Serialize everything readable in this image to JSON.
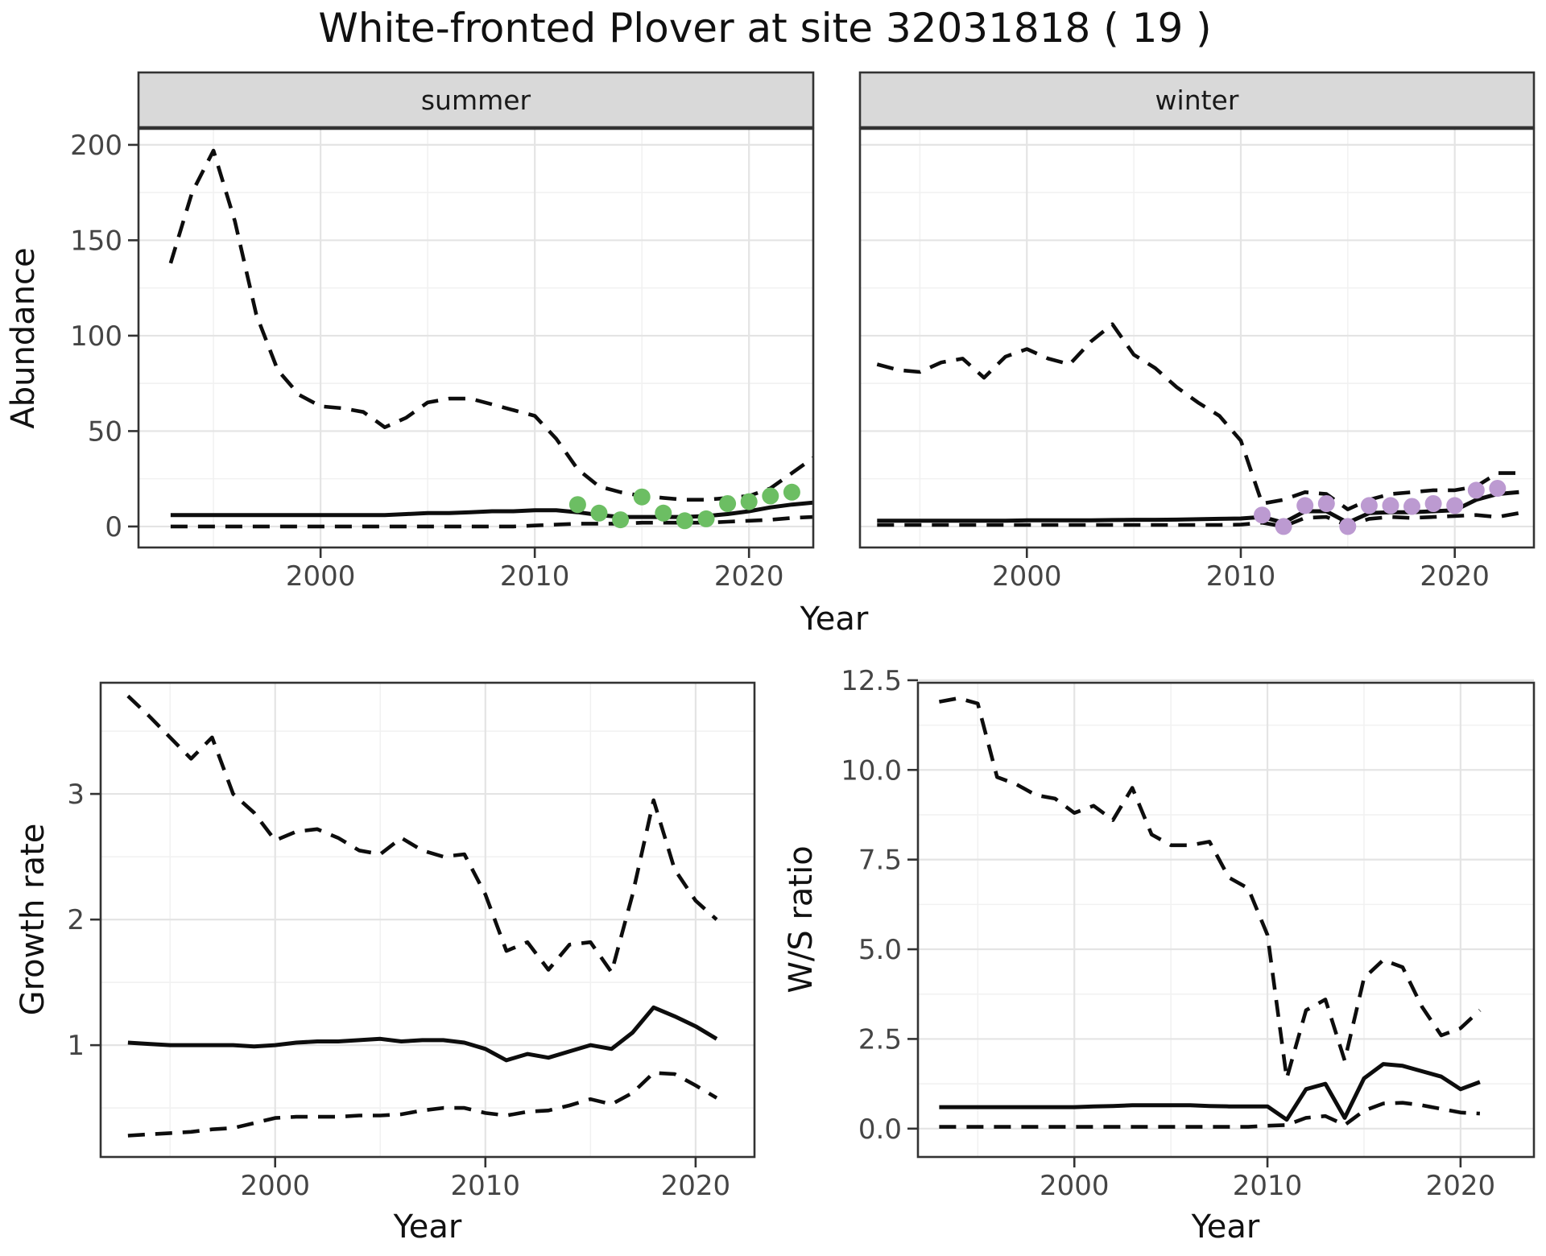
{
  "title": "White-fronted Plover at site 32031818 ( 19 )",
  "labels": {
    "facet_summer": "summer",
    "facet_winter": "winter",
    "abundance": "Abundance",
    "growth": "Growth rate",
    "ws": "W/S ratio",
    "year": "Year"
  },
  "colors": {
    "summer_points": "#6cbe63",
    "winter_points": "#bc9ad1",
    "line": "#0d0d0d",
    "grid_major": "#e4e4e4",
    "grid_minor": "#f1f1f1",
    "panel_border": "#333333",
    "strip_bg": "#d9d9d9",
    "tick_mark": "#333333",
    "panel_bg": "#ffffff"
  },
  "chart_data": [
    {
      "type": "line",
      "name": "summer-abundance",
      "facet": "summer",
      "xlabel": "Year",
      "ylabel": "Abundance",
      "x": [
        1993,
        1994,
        1995,
        1996,
        1997,
        1998,
        1999,
        2000,
        2001,
        2002,
        2003,
        2004,
        2005,
        2006,
        2007,
        2008,
        2009,
        2010,
        2011,
        2012,
        2013,
        2014,
        2015,
        2016,
        2017,
        2018,
        2019,
        2020,
        2021,
        2022,
        2023
      ],
      "series": [
        {
          "name": "upper-ci",
          "style": "dashed",
          "values": [
            138,
            175,
            197,
            160,
            111,
            82,
            69,
            63,
            62,
            60,
            52,
            57,
            65,
            67,
            67,
            64,
            61,
            58,
            46,
            30,
            21,
            18,
            16,
            15,
            14,
            14,
            15,
            16,
            20,
            28,
            36
          ]
        },
        {
          "name": "median",
          "style": "solid",
          "values": [
            6,
            6,
            6,
            6,
            6,
            6,
            6,
            6,
            6,
            6,
            6,
            6.5,
            7,
            7,
            7.5,
            8,
            8,
            8.5,
            8.5,
            7.5,
            6,
            5,
            5,
            5,
            5,
            5.5,
            6.5,
            8,
            10,
            11.5,
            12.5
          ]
        },
        {
          "name": "lower-ci",
          "style": "dashed",
          "values": [
            0,
            0,
            0,
            0,
            0,
            0,
            0,
            0,
            0,
            0,
            0,
            0,
            0,
            0,
            0,
            0,
            0,
            0.5,
            1,
            1.5,
            1.5,
            1.5,
            2,
            2,
            2,
            2,
            2.5,
            3,
            3.5,
            4.5,
            5
          ]
        }
      ],
      "points": {
        "name": "observed-counts",
        "color_key": "summer_points",
        "x": [
          2012,
          2013,
          2014,
          2015,
          2016,
          2017,
          2018,
          2019,
          2020,
          2021,
          2022
        ],
        "y": [
          11.5,
          7,
          3.5,
          15.5,
          7,
          3,
          4,
          12,
          13,
          16,
          18
        ]
      },
      "xlim": [
        1991.5,
        2023.0
      ],
      "ylim": [
        -11,
        208.4
      ],
      "xticks": [
        2000,
        2010,
        2020
      ],
      "xtick_labels": [
        "2000",
        "2010",
        "2020"
      ],
      "yticks": [
        0,
        50,
        100,
        150,
        200
      ],
      "ytick_labels": [
        "0",
        "50",
        "100",
        "150",
        "200"
      ],
      "xminor": [
        1995,
        2005,
        2015
      ],
      "yminor": [
        25,
        75,
        125,
        175
      ],
      "grid": true,
      "legend": "none"
    },
    {
      "type": "line",
      "name": "winter-abundance",
      "facet": "winter",
      "xlabel": "Year",
      "ylabel": "Abundance",
      "x": [
        1993,
        1994,
        1995,
        1996,
        1997,
        1998,
        1999,
        2000,
        2001,
        2002,
        2003,
        2004,
        2005,
        2006,
        2007,
        2008,
        2009,
        2010,
        2011,
        2012,
        2013,
        2014,
        2015,
        2016,
        2017,
        2018,
        2019,
        2020,
        2021,
        2022,
        2023
      ],
      "series": [
        {
          "name": "upper-ci",
          "style": "dashed",
          "values": [
            85,
            82,
            81,
            86,
            88,
            78,
            89,
            93,
            88,
            85,
            97,
            106,
            90,
            83,
            73,
            65,
            58,
            45,
            12,
            14,
            18,
            17,
            9,
            14,
            17,
            18,
            19,
            19,
            21,
            28,
            28
          ]
        },
        {
          "name": "median",
          "style": "solid",
          "values": [
            3,
            3,
            3,
            3,
            3,
            3,
            3,
            3.2,
            3.2,
            3.2,
            3.2,
            3.4,
            3.5,
            3.5,
            3.6,
            3.8,
            4,
            4.2,
            5,
            2,
            8,
            8,
            2,
            7,
            7.5,
            7.5,
            8,
            8.5,
            14,
            17,
            18
          ]
        },
        {
          "name": "lower-ci",
          "style": "dashed",
          "values": [
            0.8,
            0.8,
            0.8,
            0.8,
            0.8,
            0.8,
            0.8,
            0.8,
            0.8,
            0.8,
            0.8,
            0.8,
            0.8,
            0.8,
            0.8,
            0.8,
            0.8,
            1,
            2,
            0,
            4.5,
            5,
            0.5,
            4,
            5,
            4.5,
            5,
            5.5,
            6,
            5,
            7
          ]
        }
      ],
      "points": {
        "name": "observed-counts",
        "color_key": "winter_points",
        "x": [
          2011,
          2012,
          2013,
          2014,
          2015,
          2016,
          2017,
          2018,
          2019,
          2020,
          2021,
          2022
        ],
        "y": [
          6,
          0,
          11,
          12,
          0,
          11,
          11,
          10.5,
          12,
          11,
          19,
          20
        ]
      },
      "xlim": [
        1992.2,
        2023.7
      ],
      "ylim": [
        -11,
        208.4
      ],
      "xticks": [
        2000,
        2010,
        2020
      ],
      "xtick_labels": [
        "2000",
        "2010",
        "2020"
      ],
      "yticks": [
        0,
        50,
        100,
        150,
        200
      ],
      "ytick_labels": [
        "0",
        "50",
        "100",
        "150",
        "200"
      ],
      "xminor": [
        1995,
        2005,
        2015
      ],
      "yminor": [
        25,
        75,
        125,
        175
      ],
      "grid": true,
      "legend": "none",
      "ytick_labels_visible": false
    },
    {
      "type": "line",
      "name": "growth-rate",
      "xlabel": "Year",
      "ylabel": "Growth rate",
      "x": [
        1993,
        1994,
        1995,
        1996,
        1997,
        1998,
        1999,
        2000,
        2001,
        2002,
        2003,
        2004,
        2005,
        2006,
        2007,
        2008,
        2009,
        2010,
        2011,
        2012,
        2013,
        2014,
        2015,
        2016,
        2017,
        2018,
        2019,
        2020,
        2021
      ],
      "series": [
        {
          "name": "upper-ci",
          "style": "dashed",
          "values": [
            3.78,
            3.62,
            3.45,
            3.28,
            3.45,
            3.0,
            2.85,
            2.63,
            2.7,
            2.72,
            2.65,
            2.55,
            2.52,
            2.65,
            2.55,
            2.5,
            2.52,
            2.2,
            1.75,
            1.82,
            1.6,
            1.8,
            1.82,
            1.58,
            2.2,
            2.95,
            2.4,
            2.15,
            2.0
          ]
        },
        {
          "name": "median",
          "style": "solid",
          "values": [
            1.02,
            1.01,
            1.0,
            1.0,
            1.0,
            1.0,
            0.99,
            1.0,
            1.02,
            1.03,
            1.03,
            1.04,
            1.05,
            1.03,
            1.04,
            1.04,
            1.02,
            0.97,
            0.88,
            0.93,
            0.9,
            0.95,
            1.0,
            0.97,
            1.1,
            1.3,
            1.23,
            1.15,
            1.05
          ]
        },
        {
          "name": "lower-ci",
          "style": "dashed",
          "values": [
            0.28,
            0.29,
            0.3,
            0.31,
            0.33,
            0.34,
            0.38,
            0.42,
            0.43,
            0.43,
            0.43,
            0.44,
            0.44,
            0.45,
            0.48,
            0.5,
            0.5,
            0.46,
            0.44,
            0.47,
            0.48,
            0.52,
            0.57,
            0.53,
            0.62,
            0.78,
            0.77,
            0.68,
            0.58
          ]
        }
      ],
      "xlim": [
        1991.7,
        2022.8
      ],
      "ylim": [
        0.11,
        3.885
      ],
      "xticks": [
        2000,
        2010,
        2020
      ],
      "xtick_labels": [
        "2000",
        "2010",
        "2020"
      ],
      "yticks": [
        1,
        2,
        3
      ],
      "ytick_labels": [
        "1",
        "2",
        "3"
      ],
      "xminor": [
        1995,
        2005,
        2015
      ],
      "yminor": [
        0.5,
        1.5,
        2.5,
        3.5
      ],
      "grid": true,
      "legend": "none"
    },
    {
      "type": "line",
      "name": "winter-summer-ratio",
      "xlabel": "Year",
      "ylabel": "W/S ratio",
      "x": [
        1993,
        1994,
        1995,
        1996,
        1997,
        1998,
        1999,
        2000,
        2001,
        2002,
        2003,
        2004,
        2005,
        2006,
        2007,
        2008,
        2009,
        2010,
        2011,
        2012,
        2013,
        2014,
        2015,
        2016,
        2017,
        2018,
        2019,
        2020,
        2021
      ],
      "series": [
        {
          "name": "upper-ci",
          "style": "dashed",
          "values": [
            11.9,
            12.0,
            11.85,
            9.8,
            9.6,
            9.3,
            9.2,
            8.8,
            9.0,
            8.6,
            9.5,
            8.2,
            7.9,
            7.9,
            8.0,
            7.0,
            6.7,
            5.4,
            1.4,
            3.3,
            3.6,
            1.9,
            4.2,
            4.7,
            4.5,
            3.4,
            2.6,
            2.8,
            3.3
          ]
        },
        {
          "name": "median",
          "style": "solid",
          "values": [
            0.6,
            0.6,
            0.6,
            0.6,
            0.6,
            0.6,
            0.6,
            0.6,
            0.62,
            0.63,
            0.65,
            0.65,
            0.65,
            0.65,
            0.63,
            0.62,
            0.62,
            0.62,
            0.25,
            1.1,
            1.25,
            0.3,
            1.4,
            1.8,
            1.75,
            1.6,
            1.45,
            1.1,
            1.3
          ]
        },
        {
          "name": "lower-ci",
          "style": "dashed",
          "values": [
            0.05,
            0.05,
            0.05,
            0.05,
            0.05,
            0.05,
            0.05,
            0.05,
            0.05,
            0.05,
            0.05,
            0.05,
            0.05,
            0.05,
            0.05,
            0.05,
            0.05,
            0.08,
            0.1,
            0.3,
            0.35,
            0.1,
            0.5,
            0.7,
            0.72,
            0.65,
            0.55,
            0.45,
            0.42
          ]
        }
      ],
      "xlim": [
        1991.9,
        2023.8
      ],
      "ylim": [
        -0.79,
        12.43
      ],
      "xticks": [
        2000,
        2010,
        2020
      ],
      "xtick_labels": [
        "2000",
        "2010",
        "2020"
      ],
      "yticks": [
        0,
        2.5,
        5,
        7.5,
        10,
        12.5
      ],
      "ytick_labels": [
        "0.0",
        "2.5",
        "5.0",
        "7.5",
        "10.0",
        "12.5"
      ],
      "xminor": [
        1995,
        2005,
        2015
      ],
      "yminor": [
        1.25,
        3.75,
        6.25,
        8.75,
        11.25
      ],
      "grid": true,
      "legend": "none"
    }
  ]
}
